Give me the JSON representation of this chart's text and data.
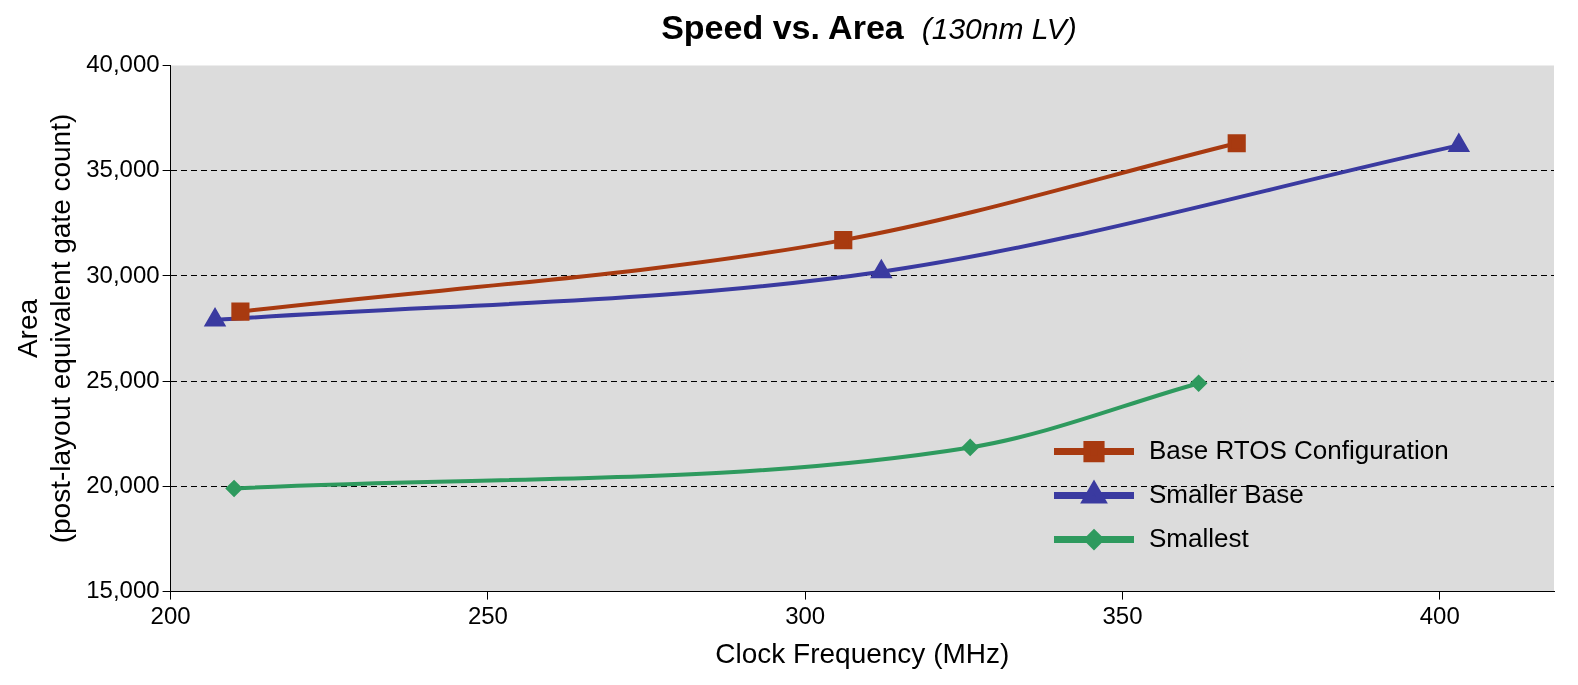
{
  "chart_data": {
    "type": "line",
    "title": "Speed vs. Area",
    "subtitle": "(130nm LV)",
    "xlabel": "Clock Frequency (MHz)",
    "ylabel": "Area\n(post-layout equivalent gate count)",
    "xlim": [
      200,
      418
    ],
    "xticks": [
      200,
      250,
      300,
      350,
      400
    ],
    "ylim": [
      15000,
      40000
    ],
    "yticks": [
      {
        "value": 15000,
        "label": "15,000"
      },
      {
        "value": 20000,
        "label": "20,000"
      },
      {
        "value": 25000,
        "label": "25,000"
      },
      {
        "value": 30000,
        "label": "30,000"
      },
      {
        "value": 35000,
        "label": "35,000"
      },
      {
        "value": 40000,
        "label": "40,000"
      }
    ],
    "grid": "y",
    "legend": "bottom right",
    "series": [
      {
        "name": "Base RTOS Configuration",
        "color": "#a83a10",
        "marker": "square",
        "x": [
          211,
          306,
          368
        ],
        "values": [
          28300,
          31700,
          36300
        ]
      },
      {
        "name": "Smaller Base",
        "color": "#3a3aa0",
        "marker": "triangle",
        "x": [
          207,
          312,
          403
        ],
        "values": [
          27900,
          30200,
          36200
        ]
      },
      {
        "name": "Smallest",
        "color": "#2e9a5e",
        "marker": "diamond",
        "x": [
          210,
          326,
          362
        ],
        "values": [
          19900,
          21850,
          24900
        ]
      }
    ]
  }
}
